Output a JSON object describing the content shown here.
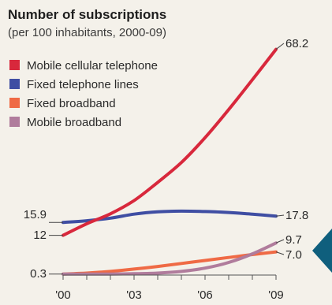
{
  "chart_data": {
    "type": "line",
    "title": "Number of subscriptions",
    "subtitle": "(per 100 inhabitants, 2000-09)",
    "x": [
      2000,
      2001,
      2002,
      2003,
      2004,
      2005,
      2006,
      2007,
      2008,
      2009
    ],
    "tick_labels": [
      "'00",
      "'03",
      "'06",
      "'09"
    ],
    "tick_years": [
      2000,
      2003,
      2006,
      2009
    ],
    "ylim": [
      0,
      70
    ],
    "series": [
      {
        "name": "Mobile cellular telephone",
        "color": "#d8283c",
        "values": [
          12,
          15.5,
          18.5,
          22.5,
          28,
          34,
          41.5,
          50,
          59,
          68.2
        ]
      },
      {
        "name": "Fixed telephone lines",
        "color": "#3f4ea3",
        "values": [
          15.9,
          16.4,
          17.2,
          18.4,
          19.1,
          19.3,
          19.2,
          18.9,
          18.4,
          17.8
        ]
      },
      {
        "name": "Fixed broadband",
        "color": "#ef6a45",
        "values": [
          0.3,
          0.6,
          1.1,
          1.8,
          2.6,
          3.5,
          4.4,
          5.3,
          6.2,
          7.0
        ]
      },
      {
        "name": "Mobile broadband",
        "color": "#b07c9c",
        "values": [
          0.3,
          0.3,
          0.3,
          0.4,
          0.6,
          1.1,
          2.1,
          3.8,
          6.4,
          9.7
        ]
      }
    ],
    "left_labels": [
      "15.9",
      "12",
      "0.3"
    ],
    "right_labels": [
      "68.2",
      "17.8",
      "9.7",
      "7.0"
    ],
    "legend_position": "top-left",
    "grid": false
  },
  "decoration": {
    "arrow_color": "#0f5f7d"
  }
}
